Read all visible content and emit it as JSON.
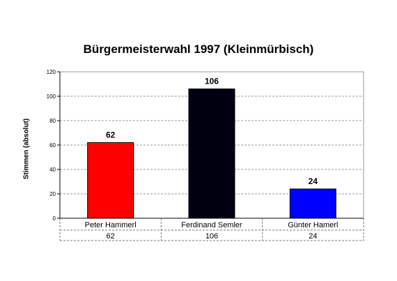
{
  "chart_data": {
    "type": "bar",
    "title": "Bürgermeisterwahl 1997 (Kleinmürbisch)",
    "ylabel": "Stimmen (absolut)",
    "xlabel": "",
    "ylim": [
      0,
      120
    ],
    "yticks": [
      0,
      20,
      40,
      60,
      80,
      100,
      120
    ],
    "grid": true,
    "categories": [
      "Peter Hammerl",
      "Ferdinand Semler",
      "Günter Hamerl"
    ],
    "values": [
      62,
      106,
      24
    ],
    "value_labels": [
      "62",
      "106",
      "24"
    ],
    "table_values": [
      "62",
      "106",
      "24"
    ],
    "colors": [
      "#ff0000",
      "#000010",
      "#0000ff"
    ]
  }
}
